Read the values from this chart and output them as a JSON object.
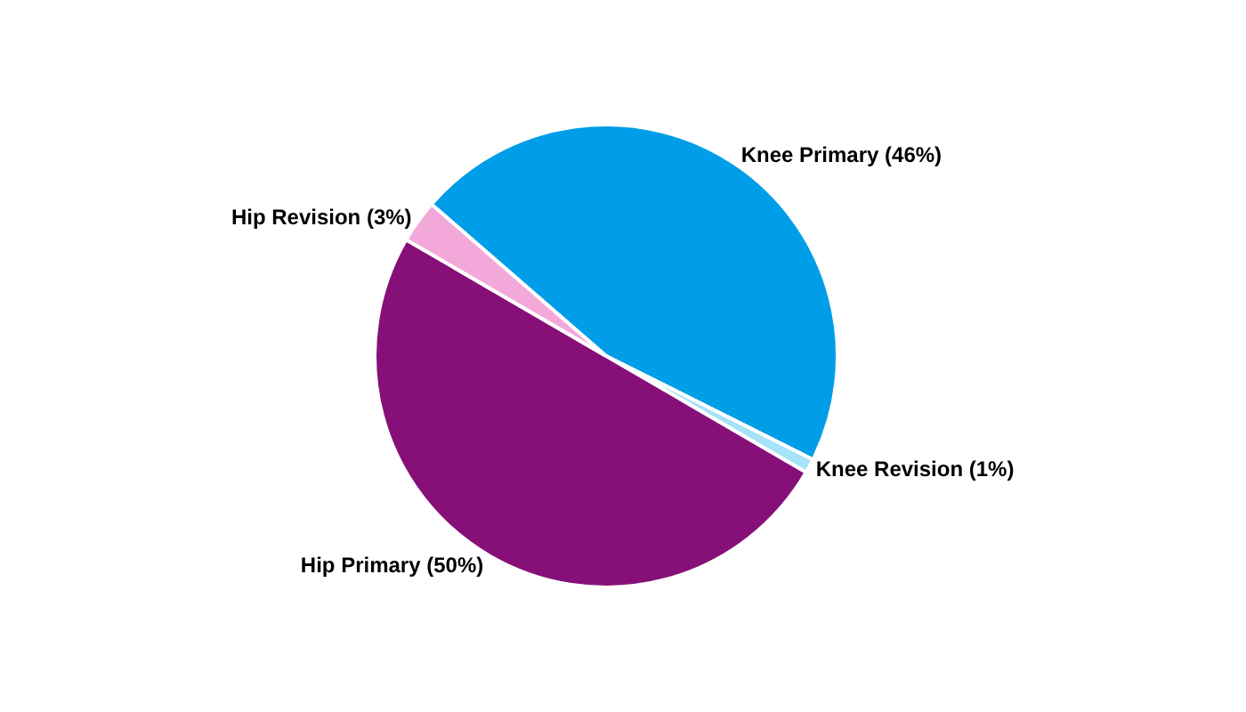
{
  "chart_data": {
    "type": "pie",
    "categories": [
      "Knee Primary (46%)",
      "Knee Revision (1%)",
      "Hip Primary (50%)",
      "Hip Revision (3%)"
    ],
    "values": [
      46,
      1,
      50,
      3
    ],
    "colors": [
      "#009de8",
      "#a6e3f8",
      "#861078",
      "#f2a9da"
    ],
    "legend": false
  }
}
